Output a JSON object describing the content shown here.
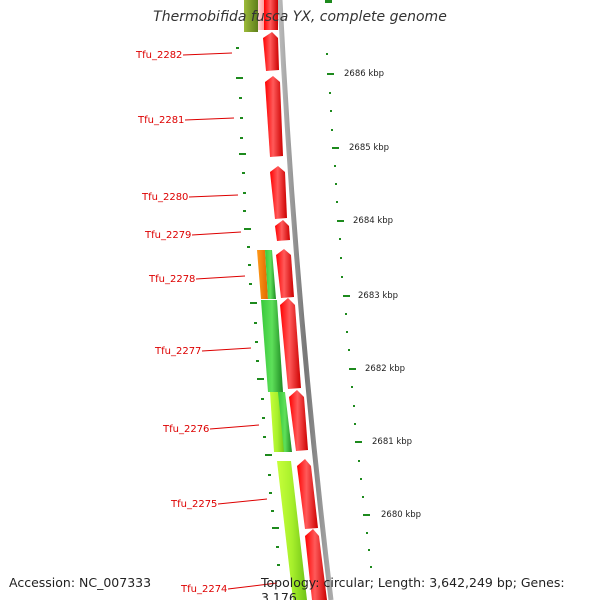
{
  "map": {
    "title": "Thermobifida fusca YX, complete genome"
  },
  "footer": {
    "accession": "Accession: NC_007333",
    "summary": "Topology: circular; Length: 3,642,249 bp; Genes: 3,176"
  },
  "genes": [
    {
      "name": "Tfu_2282",
      "strand": "forward"
    },
    {
      "name": "Tfu_2281",
      "strand": "forward"
    },
    {
      "name": "Tfu_2280",
      "strand": "forward"
    },
    {
      "name": "Tfu_2279",
      "strand": "forward"
    },
    {
      "name": "Tfu_2278",
      "strand": "forward"
    },
    {
      "name": "Tfu_2277",
      "strand": "forward"
    },
    {
      "name": "Tfu_2276",
      "strand": "forward"
    },
    {
      "name": "Tfu_2275",
      "strand": "forward"
    },
    {
      "name": "Tfu_2274",
      "strand": "forward"
    }
  ],
  "scale_labels": [
    "2686 kbp",
    "2685 kbp",
    "2684 kbp",
    "2683 kbp",
    "2682 kbp",
    "2681 kbp",
    "2680 kbp"
  ],
  "colors": {
    "gene_forward": "#ff0000",
    "backbone": "#8a8a8a",
    "label": "#dd0000",
    "tick": "#1d8a1d",
    "feature_dark_green": "#2fbf3a",
    "feature_light_green": "#a6ef2a",
    "feature_orange": "#ff8800"
  }
}
